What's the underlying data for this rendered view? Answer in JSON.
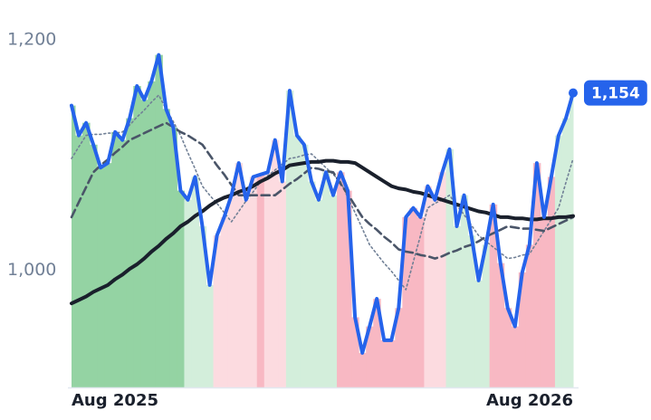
{
  "chart_data": {
    "type": "line",
    "categories": [
      "Aug 2025",
      null,
      null,
      null,
      null,
      null,
      null,
      null,
      null,
      null,
      null,
      null,
      null,
      null,
      null,
      null,
      null,
      null,
      null,
      null,
      null,
      null,
      null,
      null,
      null,
      null,
      null,
      null,
      null,
      null,
      null,
      null,
      null,
      null,
      null,
      null,
      null,
      null,
      null,
      null,
      null,
      null,
      null,
      null,
      null,
      null,
      null,
      null,
      null,
      null,
      null,
      null,
      null,
      null,
      null,
      null,
      null,
      null,
      null,
      null,
      null,
      null,
      null,
      null,
      null,
      null,
      null,
      null,
      null,
      "Aug 2026"
    ],
    "ylim": [
      898,
      1230
    ],
    "yticks": [
      {
        "value": 1000,
        "label": "1,000"
      },
      {
        "value": 1200,
        "label": "1,200"
      }
    ],
    "grid": false,
    "series": [
      {
        "color": "#718096",
        "style": "dotted",
        "values": [
          1097,
          1107,
          1117,
          1118,
          1118,
          1119,
          1119,
          1120,
          1126,
          1133,
          1139,
          1146,
          1152,
          1140,
          1129,
          1117,
          1102,
          1088,
          1073,
          1065,
          1058,
          1050,
          1042,
          1051,
          1060,
          1068,
          1077,
          1082,
          1087,
          1092,
          1097,
          1098,
          1100,
          1101,
          1095,
          1089,
          1083,
          1077,
          1063,
          1050,
          1036,
          1022,
          1014,
          1006,
          999,
          991,
          983,
          1007,
          1030,
          1054,
          1058,
          1061,
          1065,
          1056,
          1048,
          1039,
          1030,
          1025,
          1020,
          1015,
          1010,
          1011,
          1013,
          1014,
          1024,
          1034,
          1044,
          1054,
          1076,
          1097
        ]
      },
      {
        "color": "#4a5568",
        "style": "dashed",
        "values": [
          1046,
          1059,
          1072,
          1085,
          1091,
          1096,
          1102,
          1107,
          1113,
          1116,
          1119,
          1122,
          1125,
          1128,
          1124,
          1120,
          1117,
          1113,
          1109,
          1100,
          1091,
          1083,
          1074,
          1065,
          1065,
          1065,
          1065,
          1065,
          1065,
          1070,
          1075,
          1079,
          1084,
          1089,
          1088,
          1086,
          1085,
          1075,
          1066,
          1056,
          1046,
          1040,
          1035,
          1029,
          1024,
          1018,
          1016,
          1015,
          1013,
          1012,
          1010,
          1012,
          1015,
          1017,
          1020,
          1022,
          1025,
          1029,
          1032,
          1035,
          1038,
          1037,
          1036,
          1036,
          1035,
          1034,
          1037,
          1040,
          1043,
          1046
        ]
      },
      {
        "color": "#1a202c",
        "style": "thick",
        "values": [
          971,
          974,
          977,
          981,
          984,
          987,
          992,
          996,
          1001,
          1005,
          1010,
          1016,
          1021,
          1027,
          1032,
          1038,
          1042,
          1047,
          1051,
          1056,
          1060,
          1063,
          1065,
          1068,
          1070,
          1073,
          1077,
          1080,
          1084,
          1087,
          1091,
          1092,
          1093,
          1094,
          1094,
          1095,
          1095,
          1094,
          1094,
          1093,
          1089,
          1085,
          1081,
          1077,
          1073,
          1071,
          1070,
          1068,
          1067,
          1065,
          1063,
          1061,
          1059,
          1057,
          1055,
          1053,
          1051,
          1050,
          1048,
          1046,
          1046,
          1045,
          1045,
          1044,
          1044,
          1045,
          1045,
          1046,
          1046,
          1047
        ]
      },
      {
        "color": "#2563eb",
        "style": "main",
        "values": [
          1143,
          1117,
          1128,
          1109,
          1089,
          1093,
          1120,
          1113,
          1132,
          1160,
          1148,
          1164,
          1187,
          1140,
          1124,
          1069,
          1061,
          1081,
          1038,
          987,
          1030,
          1046,
          1065,
          1093,
          1061,
          1081,
          1083,
          1085,
          1113,
          1077,
          1156,
          1117,
          1109,
          1077,
          1061,
          1085,
          1065,
          1085,
          1069,
          959,
          928,
          951,
          975,
          939,
          939,
          967,
          1046,
          1054,
          1046,
          1073,
          1061,
          1085,
          1105,
          1038,
          1065,
          1030,
          991,
          1022,
          1057,
          1006,
          967,
          951,
          998,
          1022,
          1093,
          1046,
          1081,
          1117,
          1132,
          1154
        ],
        "value_labels": [
          null,
          null,
          null,
          null,
          null,
          null,
          null,
          null,
          null,
          null,
          null,
          null,
          null,
          null,
          null,
          null,
          null,
          null,
          null,
          null,
          null,
          null,
          null,
          null,
          null,
          null,
          null,
          null,
          null,
          null,
          null,
          null,
          null,
          null,
          null,
          null,
          null,
          null,
          null,
          null,
          null,
          null,
          null,
          null,
          null,
          null,
          null,
          null,
          null,
          null,
          null,
          null,
          null,
          null,
          null,
          null,
          null,
          null,
          null,
          null,
          null,
          null,
          null,
          null,
          null,
          null,
          null,
          null,
          null,
          "1,154"
        ],
        "shade_colors": [
          "#94d3a3",
          "#94d3a3",
          "#94d3a3",
          "#94d3a3",
          "#94d3a3",
          "#94d3a3",
          "#94d3a3",
          "#94d3a3",
          "#94d3a3",
          "#94d3a3",
          "#94d3a3",
          "#94d3a3",
          "#94d3a3",
          "#94d3a3",
          "#94d3a3",
          "#94d3a3",
          "#d3eedb",
          "#d3eedb",
          "#d3eedb",
          "#d3eedb",
          "#fcdbe0",
          "#fcdbe0",
          "#fcdbe0",
          "#fcdbe0",
          "#fcdbe0",
          "#fcdbe0",
          "#f8b8c3",
          "#fcdbe0",
          "#fcdbe0",
          "#fcdbe0",
          "#d3eedb",
          "#d3eedb",
          "#d3eedb",
          "#d3eedb",
          "#d3eedb",
          "#d3eedb",
          "#d3eedb",
          "#f8b8c3",
          "#f8b8c3",
          "#f8b8c3",
          "#f8b8c3",
          "#f8b8c3",
          "#f8b8c3",
          "#f8b8c3",
          "#f8b8c3",
          "#f8b8c3",
          "#f8b8c3",
          "#f8b8c3",
          "#f8b8c3",
          "#fcdbe0",
          "#fcdbe0",
          "#fcdbe0",
          "#d3eedb",
          "#d3eedb",
          "#d3eedb",
          "#d3eedb",
          "#d3eedb",
          "#d3eedb",
          "#f8b8c3",
          "#f8b8c3",
          "#f8b8c3",
          "#f8b8c3",
          "#f8b8c3",
          "#f8b8c3",
          "#f8b8c3",
          "#f8b8c3",
          "#f8b8c3",
          "#d3eedb",
          "#d3eedb",
          "#d3eedb"
        ]
      }
    ]
  }
}
